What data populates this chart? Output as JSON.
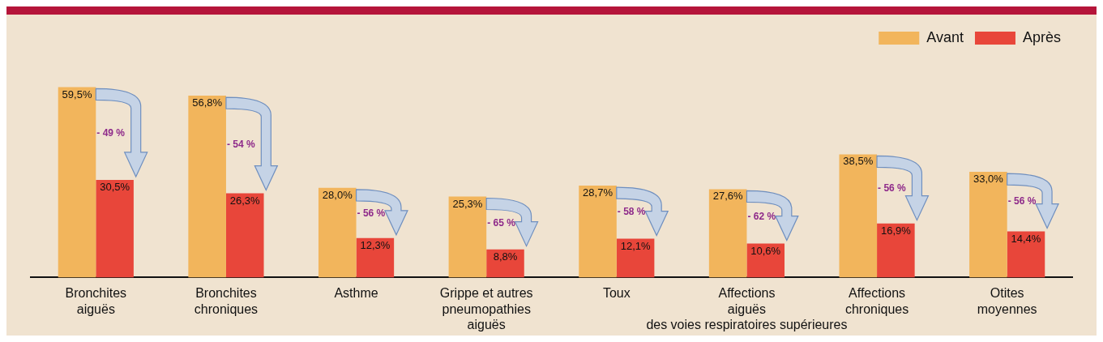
{
  "chart_data": {
    "type": "bar",
    "categories": [
      "Bronchites\naiguës",
      "Bronchites\nchroniques",
      "Asthme",
      "Grippe et autres\npneumopathies\naiguës",
      "Toux",
      "Affections\naiguës\ndes voies respiratoires supérieures",
      "Affections\nchroniques",
      "Otites\nmoyennes"
    ],
    "series": [
      {
        "name": "Avant",
        "color": "#f2b55c",
        "values": [
          59.5,
          56.8,
          28.0,
          25.3,
          28.7,
          27.6,
          38.5,
          33.0
        ],
        "value_labels": [
          "59,5%",
          "56,8%",
          "28,0%",
          "25,3%",
          "28,7%",
          "27,6%",
          "38,5%",
          "33,0%"
        ]
      },
      {
        "name": "Après",
        "color": "#e8463a",
        "values": [
          30.5,
          26.3,
          12.3,
          8.8,
          12.1,
          10.6,
          16.9,
          14.4
        ],
        "value_labels": [
          "30,5%",
          "26,3%",
          "12,3%",
          "8,8%",
          "12,1%",
          "10,6%",
          "16,9%",
          "14,4%"
        ]
      }
    ],
    "annotations": [
      {
        "text": "- 49 %",
        "x": "Bronchites\naiguës",
        "y": 45
      },
      {
        "text": "- 54 %",
        "x": "Bronchites\nchroniques",
        "y": 41.5
      },
      {
        "text": "- 56 %",
        "x": "Asthme",
        "y": 20
      },
      {
        "text": "- 65 %",
        "x": "Grippe et autres\npneumopathies\naiguës",
        "y": 17
      },
      {
        "text": "- 58 %",
        "x": "Toux",
        "y": 20.4
      },
      {
        "text": "- 62 %",
        "x": "Affections\naiguës\ndes voies respiratoires supérieures",
        "y": 19
      },
      {
        "text": "- 56 %",
        "x": "Affections\nchroniques",
        "y": 27.7
      },
      {
        "text": "- 56 %",
        "x": "Otites\nmoyennes",
        "y": 23.7
      }
    ],
    "legend": "top right",
    "grid": false
  }
}
